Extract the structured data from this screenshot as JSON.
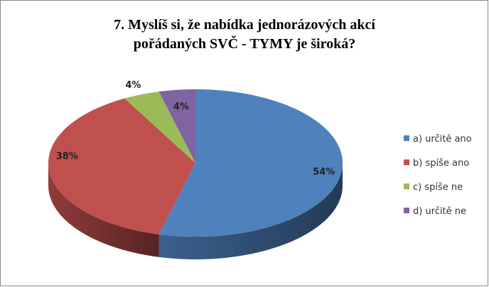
{
  "chart_data": {
    "type": "pie3d",
    "title": [
      "7. Myslíš si, že nabídka jednorázových akcí",
      "pořádaných SVČ - TYMY je široká?"
    ],
    "categories": [
      "a) určitě ano",
      "b) spíše ano",
      "c) spíše ne",
      "d) určitě ne"
    ],
    "values": [
      54,
      38,
      4,
      4
    ],
    "value_labels": [
      "54%",
      "38%",
      "4%",
      "4%"
    ],
    "colors": [
      "#4f81bd",
      "#c0504d",
      "#9bbb59",
      "#8064a2"
    ],
    "legend": "right"
  }
}
